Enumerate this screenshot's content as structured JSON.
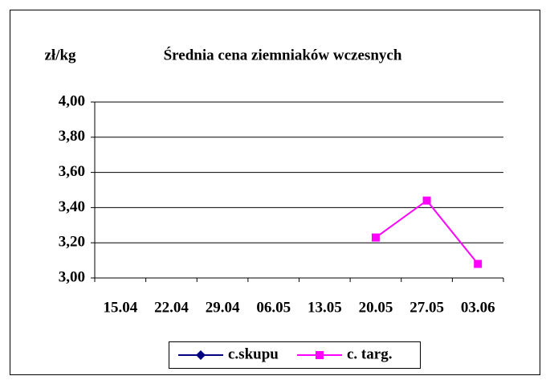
{
  "chart_data": {
    "type": "line",
    "title": "Średnia cena ziemniaków wczesnych",
    "y_label": "zł/kg",
    "categories": [
      "15.04",
      "22.04",
      "29.04",
      "06.05",
      "13.05",
      "20.05",
      "27.05",
      "03.06"
    ],
    "series": [
      {
        "name": "c.skupu",
        "color": "#000080",
        "marker": "diamond",
        "values": [
          null,
          null,
          null,
          null,
          null,
          null,
          null,
          null
        ]
      },
      {
        "name": "c. targ.",
        "color": "#ff00ff",
        "marker": "square",
        "values": [
          null,
          null,
          null,
          null,
          null,
          3.23,
          3.44,
          3.08
        ]
      }
    ],
    "ylim": [
      3,
      4
    ],
    "yticks": [
      {
        "value": 3,
        "label": "3,00"
      },
      {
        "value": 3.2,
        "label": "3,20"
      },
      {
        "value": 3.4,
        "label": "3,40"
      },
      {
        "value": 3.6,
        "label": "3,60"
      },
      {
        "value": 3.8,
        "label": "3,80"
      },
      {
        "value": 4,
        "label": "4,00"
      }
    ],
    "grid": true,
    "legend": "bottom"
  }
}
